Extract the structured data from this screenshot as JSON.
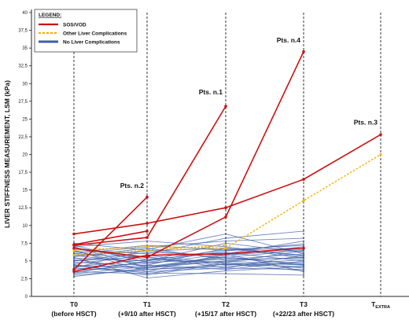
{
  "chart_data": {
    "type": "line",
    "ylabel": "LIVER STIFFNESS MEASUREMENT, LSM (kPa)",
    "xlabel": "",
    "ylim": [
      0,
      40
    ],
    "yticks": [
      "0",
      "2,5",
      "5",
      "7,5",
      "10",
      "12,5",
      "15",
      "17,5",
      "20",
      "22,5",
      "25",
      "27,5",
      "30",
      "32,5",
      "35",
      "37,5",
      "40"
    ],
    "categories": [
      {
        "line1": "T0",
        "line2": "(before HSCT)"
      },
      {
        "line1": "T1",
        "line2": "(+9/10 after HSCT)"
      },
      {
        "line1": "T2",
        "line2": "(+15/17 after HSCT)"
      },
      {
        "line1": "T3",
        "line2": "(+22/23 after HSCT)"
      },
      {
        "line1": "T",
        "sub": "EXTRA",
        "line2": ""
      }
    ],
    "legend": {
      "title": "LEGEND:",
      "items": [
        {
          "label": "SOS/VOD",
          "color": "#cc1111",
          "style": "solid"
        },
        {
          "label": "Other Liver Complications",
          "color": "#f2b400",
          "style": "dashed"
        },
        {
          "label": "No Liver Complications",
          "color": "#3f5fa8",
          "style": "solid"
        }
      ]
    },
    "annotations": [
      {
        "text": "Pts. n.1",
        "x": 2,
        "y": 28.5
      },
      {
        "text": "Pts. n.2",
        "x": 1,
        "y": 15.3
      },
      {
        "text": "Pts. n.3",
        "x": 4,
        "y": 24.2
      },
      {
        "text": "Pts. n.4",
        "x": 3,
        "y": 35.8
      }
    ],
    "series": [
      {
        "group": "SOS/VOD",
        "values": [
          7.2,
          8.3,
          26.8,
          null,
          null
        ]
      },
      {
        "group": "SOS/VOD",
        "values": [
          3.8,
          14.0,
          null,
          null,
          null
        ]
      },
      {
        "group": "SOS/VOD",
        "values": [
          8.8,
          10.3,
          12.5,
          16.5,
          22.8
        ]
      },
      {
        "group": "SOS/VOD",
        "values": [
          6.8,
          5.5,
          11.2,
          34.5,
          null
        ]
      },
      {
        "group": "SOS/VOD",
        "values": [
          7.3,
          9.2,
          null,
          null,
          null
        ]
      },
      {
        "group": "SOS/VOD",
        "values": [
          3.5,
          5.8,
          6.0,
          6.8,
          null
        ]
      },
      {
        "group": "Other Liver Complications",
        "values": [
          6.5,
          7.0,
          6.8,
          13.5,
          20.0
        ]
      },
      {
        "group": "Other Liver Complications",
        "values": [
          5.8,
          6.5,
          7.2,
          null,
          null
        ]
      },
      {
        "group": "No Liver Complications",
        "values": [
          3.0,
          3.8,
          4.5,
          4.2,
          null
        ]
      },
      {
        "group": "No Liver Complications",
        "values": [
          3.2,
          4.2,
          5.0,
          5.5,
          null
        ]
      },
      {
        "group": "No Liver Complications",
        "values": [
          3.5,
          3.2,
          4.8,
          4.0,
          null
        ]
      },
      {
        "group": "No Liver Complications",
        "values": [
          3.8,
          4.8,
          5.2,
          6.0,
          null
        ]
      },
      {
        "group": "No Liver Complications",
        "values": [
          4.0,
          3.5,
          4.0,
          3.8,
          null
        ]
      },
      {
        "group": "No Liver Complications",
        "values": [
          4.2,
          5.2,
          6.2,
          5.0,
          null
        ]
      },
      {
        "group": "No Liver Complications",
        "values": [
          4.4,
          4.0,
          5.5,
          6.5,
          null
        ]
      },
      {
        "group": "No Liver Complications",
        "values": [
          4.6,
          5.8,
          4.6,
          4.5,
          null
        ]
      },
      {
        "group": "No Liver Complications",
        "values": [
          4.8,
          4.4,
          6.8,
          5.8,
          null
        ]
      },
      {
        "group": "No Liver Complications",
        "values": [
          5.0,
          6.2,
          5.8,
          7.0,
          null
        ]
      },
      {
        "group": "No Liver Complications",
        "values": [
          5.2,
          3.8,
          4.2,
          4.8,
          null
        ]
      },
      {
        "group": "No Liver Complications",
        "values": [
          5.4,
          5.0,
          7.5,
          6.2,
          null
        ]
      },
      {
        "group": "No Liver Complications",
        "values": [
          5.6,
          6.8,
          5.2,
          5.4,
          null
        ]
      },
      {
        "group": "No Liver Complications",
        "values": [
          5.8,
          4.6,
          6.0,
          7.8,
          null
        ]
      },
      {
        "group": "No Liver Complications",
        "values": [
          6.0,
          5.5,
          4.4,
          5.2,
          null
        ]
      },
      {
        "group": "No Liver Complications",
        "values": [
          6.2,
          7.2,
          6.5,
          6.8,
          null
        ]
      },
      {
        "group": "No Liver Complications",
        "values": [
          6.4,
          4.2,
          5.6,
          4.4,
          null
        ]
      },
      {
        "group": "No Liver Complications",
        "values": [
          6.6,
          6.0,
          8.2,
          9.2,
          null
        ]
      },
      {
        "group": "No Liver Complications",
        "values": [
          6.8,
          5.2,
          4.8,
          6.4,
          null
        ]
      },
      {
        "group": "No Liver Complications",
        "values": [
          7.0,
          7.8,
          7.0,
          5.6,
          null
        ]
      },
      {
        "group": "No Liver Complications",
        "values": [
          7.2,
          4.8,
          6.4,
          7.4,
          null
        ]
      },
      {
        "group": "No Liver Complications",
        "values": [
          7.5,
          6.5,
          5.4,
          4.6,
          null
        ]
      },
      {
        "group": "No Liver Complications",
        "values": [
          3.6,
          4.4,
          3.8,
          5.0,
          null
        ]
      },
      {
        "group": "No Liver Complications",
        "values": [
          4.5,
          3.0,
          4.6,
          3.6,
          null
        ]
      },
      {
        "group": "No Liver Complications",
        "values": [
          5.5,
          2.6,
          3.6,
          4.2,
          null
        ]
      },
      {
        "group": "No Liver Complications",
        "values": [
          2.8,
          4.0,
          5.8,
          6.6,
          null
        ]
      },
      {
        "group": "No Liver Complications",
        "values": [
          6.5,
          3.5,
          6.0,
          3.5,
          null
        ]
      },
      {
        "group": "No Liver Complications",
        "values": [
          4.0,
          6.6,
          8.8,
          6.0,
          null
        ]
      },
      {
        "group": "No Liver Complications",
        "values": [
          5.0,
          5.6,
          4.0,
          5.8,
          null
        ]
      },
      {
        "group": "No Liver Complications",
        "values": [
          3.3,
          5.0,
          6.6,
          7.2,
          null
        ]
      },
      {
        "group": "No Liver Complications",
        "values": [
          7.0,
          4.0,
          5.0,
          4.4,
          null
        ]
      },
      {
        "group": "No Liver Complications",
        "values": [
          6.0,
          7.0,
          7.8,
          8.2,
          null
        ]
      },
      {
        "group": "No Liver Complications",
        "values": [
          4.3,
          3.3,
          3.2,
          3.0,
          null
        ]
      },
      {
        "group": "No Liver Complications",
        "values": [
          5.7,
          6.4,
          6.8,
          5.4,
          null
        ]
      }
    ]
  }
}
